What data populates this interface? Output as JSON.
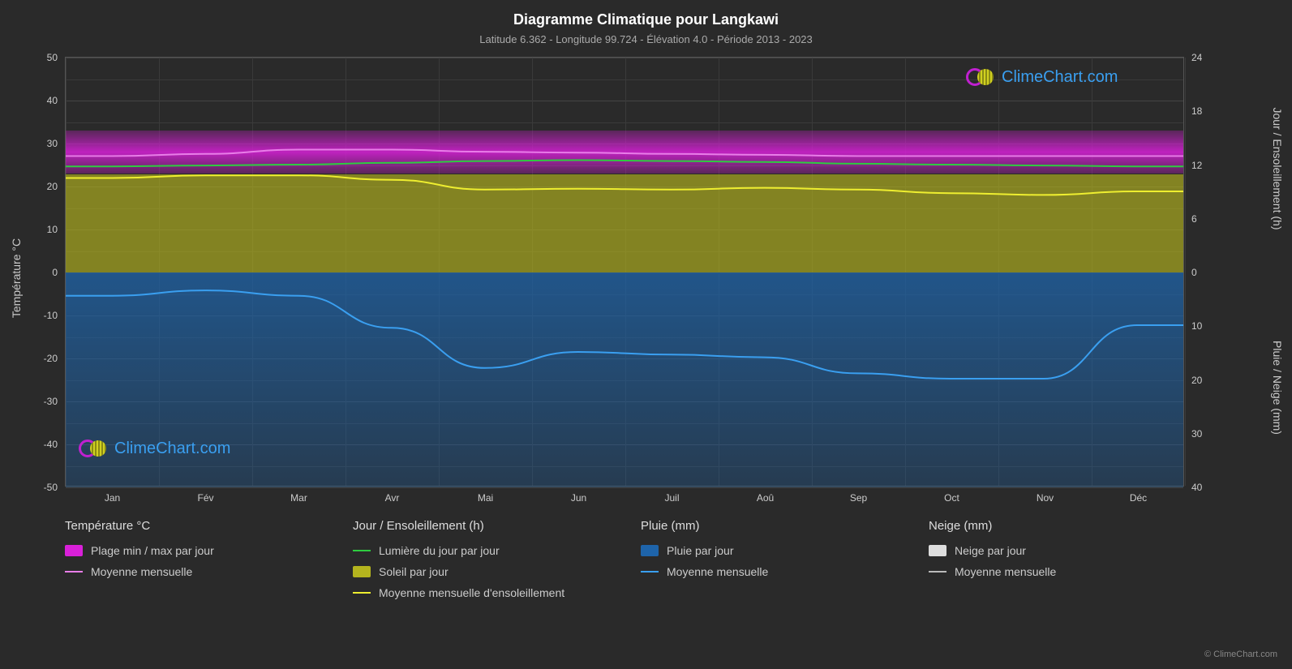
{
  "title": "Diagramme Climatique pour Langkawi",
  "subtitle": "Latitude 6.362 - Longitude 99.724 - Élévation 4.0 - Période 2013 - 2023",
  "axis_left_title": "Température °C",
  "axis_right_top_title": "Jour / Ensoleillement (h)",
  "axis_right_bottom_title": "Pluie / Neige (mm)",
  "months": [
    "Jan",
    "Fév",
    "Mar",
    "Avr",
    "Mai",
    "Jun",
    "Juil",
    "Aoû",
    "Sep",
    "Oct",
    "Nov",
    "Déc"
  ],
  "y_left": {
    "min": -50,
    "max": 50,
    "step": 10
  },
  "y_right_top": {
    "min": 0,
    "max": 24,
    "step": 6,
    "at_temp0": 0,
    "at_temp50": 24
  },
  "y_right_bottom": {
    "min": 0,
    "max": 40,
    "step": 10,
    "at_temp0": 0,
    "at_temp-50": 40
  },
  "colors": {
    "bg": "#2a2a2a",
    "grid": "#444444",
    "grid_minor": "#3a3a3a",
    "text": "#cccccc",
    "temp_band": "#d920d9",
    "temp_avg_line": "#e87ee8",
    "daylight_line": "#2ecc40",
    "sun_band": "#b4b41e",
    "sun_avg_line": "#eeee30",
    "rain_band": "#1e64aa",
    "rain_avg_line": "#3a9ff0",
    "snow_band": "#dddddd",
    "snow_avg_line": "#bbbbbb",
    "watermark_text": "#3a9ff0",
    "logo_ring": "#c020d0"
  },
  "bands": {
    "temp": {
      "min_c": 23,
      "max_c": 33
    },
    "sun": {
      "min_h": 0,
      "max_h": 11
    },
    "rain": {
      "min_mm": 0,
      "max_mm": 40
    }
  },
  "temp_avg_monthly_c": [
    27.0,
    27.5,
    28.5,
    28.5,
    28.0,
    27.8,
    27.5,
    27.3,
    27.0,
    27.0,
    27.0,
    27.0
  ],
  "daylight_monthly_h": [
    11.8,
    11.9,
    12.0,
    12.2,
    12.4,
    12.5,
    12.4,
    12.3,
    12.1,
    12.0,
    11.9,
    11.8
  ],
  "sunshine_avg_monthly_h": [
    10.5,
    10.8,
    10.8,
    10.3,
    9.2,
    9.3,
    9.2,
    9.4,
    9.2,
    8.8,
    8.6,
    9.0
  ],
  "rain_avg_monthly_mm": [
    4.5,
    3.5,
    4.5,
    10.5,
    18.0,
    15.0,
    15.5,
    16.0,
    19.0,
    20.0,
    20.0,
    10.0
  ],
  "watermark_text": "ClimeChart.com",
  "legend": {
    "temp": {
      "header": "Température °C",
      "items": [
        {
          "type": "swatch",
          "color": "#d920d9",
          "label": "Plage min / max par jour"
        },
        {
          "type": "line",
          "color": "#e87ee8",
          "label": "Moyenne mensuelle"
        }
      ]
    },
    "day": {
      "header": "Jour / Ensoleillement (h)",
      "items": [
        {
          "type": "line",
          "color": "#2ecc40",
          "label": "Lumière du jour par jour"
        },
        {
          "type": "swatch",
          "color": "#b4b41e",
          "label": "Soleil par jour"
        },
        {
          "type": "line",
          "color": "#eeee30",
          "label": "Moyenne mensuelle d'ensoleillement"
        }
      ]
    },
    "rain": {
      "header": "Pluie (mm)",
      "items": [
        {
          "type": "swatch",
          "color": "#1e64aa",
          "label": "Pluie par jour"
        },
        {
          "type": "line",
          "color": "#3a9ff0",
          "label": "Moyenne mensuelle"
        }
      ]
    },
    "snow": {
      "header": "Neige (mm)",
      "items": [
        {
          "type": "swatch",
          "color": "#dddddd",
          "label": "Neige par jour"
        },
        {
          "type": "line",
          "color": "#bbbbbb",
          "label": "Moyenne mensuelle"
        }
      ]
    }
  },
  "copyright": "© ClimeChart.com"
}
